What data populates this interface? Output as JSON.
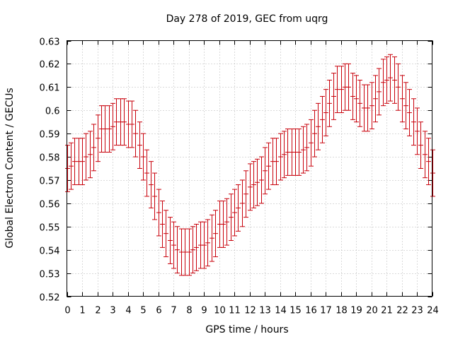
{
  "chart_data": {
    "type": "scatter",
    "title": "Day 278 of 2019, GEC from uqrg",
    "xlabel": "GPS time / hours",
    "ylabel": "Global Electron Content / GECUs",
    "xlim": [
      0,
      24
    ],
    "ylim": [
      0.52,
      0.63
    ],
    "xticks": [
      0,
      1,
      2,
      3,
      4,
      5,
      6,
      7,
      8,
      9,
      10,
      11,
      12,
      13,
      14,
      15,
      16,
      17,
      18,
      19,
      20,
      21,
      22,
      23,
      24
    ],
    "yticks": [
      0.52,
      0.53,
      0.54,
      0.55,
      0.56,
      0.57,
      0.58,
      0.59,
      0.6,
      0.61,
      0.62,
      0.63
    ],
    "ytick_labels": [
      "0.52",
      "0.53",
      "0.54",
      "0.55",
      "0.56",
      "0.57",
      "0.58",
      "0.59",
      "0.6",
      "0.61",
      "0.62",
      "0.63"
    ],
    "grid": true,
    "error": 0.01,
    "color": "#c8000a",
    "series": [
      {
        "x": [
          0,
          0.25,
          0.5,
          0.75,
          1,
          1.25,
          1.5,
          1.75,
          2,
          2.25,
          2.5,
          2.75,
          3,
          3.25,
          3.5,
          3.75,
          4,
          4.25,
          4.5,
          4.75,
          5,
          5.25,
          5.5,
          5.75,
          6,
          6.25,
          6.5,
          6.75,
          7,
          7.25,
          7.5,
          7.75,
          8,
          8.25,
          8.5,
          8.75,
          9,
          9.25,
          9.5,
          9.75,
          10,
          10.25,
          10.5,
          10.75,
          11,
          11.25,
          11.5,
          11.75,
          12,
          12.25,
          12.5,
          12.75,
          13,
          13.25,
          13.5,
          13.75,
          14,
          14.25,
          14.5,
          14.75,
          15,
          15.25,
          15.5,
          15.75,
          16,
          16.25,
          16.5,
          16.75,
          17,
          17.25,
          17.5,
          17.75,
          18,
          18.25,
          18.5,
          18.75,
          19,
          19.25,
          19.5,
          19.75,
          20,
          20.25,
          20.5,
          20.75,
          21,
          21.25,
          21.5,
          21.75,
          22,
          22.25,
          22.5,
          22.75,
          23,
          23.25,
          23.5,
          23.75,
          24
        ],
        "values": [
          0.575,
          0.576,
          0.578,
          0.578,
          0.578,
          0.58,
          0.581,
          0.584,
          0.588,
          0.592,
          0.592,
          0.592,
          0.593,
          0.595,
          0.595,
          0.595,
          0.594,
          0.594,
          0.59,
          0.585,
          0.58,
          0.573,
          0.568,
          0.563,
          0.556,
          0.551,
          0.547,
          0.544,
          0.542,
          0.54,
          0.539,
          0.539,
          0.539,
          0.54,
          0.541,
          0.542,
          0.542,
          0.543,
          0.545,
          0.547,
          0.551,
          0.551,
          0.552,
          0.554,
          0.556,
          0.558,
          0.56,
          0.564,
          0.567,
          0.568,
          0.569,
          0.57,
          0.574,
          0.576,
          0.578,
          0.578,
          0.58,
          0.581,
          0.582,
          0.582,
          0.582,
          0.582,
          0.583,
          0.584,
          0.586,
          0.59,
          0.593,
          0.596,
          0.599,
          0.603,
          0.606,
          0.609,
          0.609,
          0.61,
          0.61,
          0.606,
          0.605,
          0.603,
          0.601,
          0.601,
          0.602,
          0.605,
          0.608,
          0.612,
          0.613,
          0.614,
          0.613,
          0.61,
          0.605,
          0.602,
          0.599,
          0.595,
          0.591,
          0.585,
          0.581,
          0.578,
          0.573
        ]
      }
    ]
  }
}
